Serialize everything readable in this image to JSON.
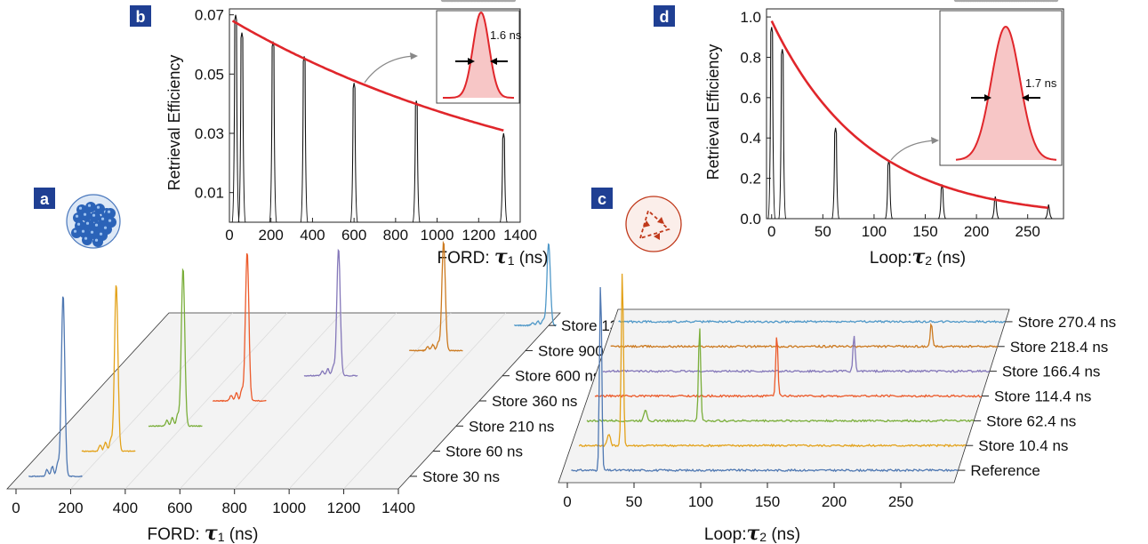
{
  "colors": {
    "fit": "#e0262b",
    "pulse": "#111111",
    "inset_dots": "#a9a9a9",
    "inset_fill": "#f7c6c6",
    "panel_label_bg": "#1f3f93",
    "floor": "#f3f3f3",
    "series": [
      "#4f78b2",
      "#e3a21a",
      "#7aae3a",
      "#ec5a2a",
      "#8477b9",
      "#cc7a20",
      "#4f98c8"
    ]
  },
  "panel_labels": {
    "a": "a",
    "b": "b",
    "c": "c",
    "d": "d"
  },
  "icons": {
    "a": "atom-cloud-icon",
    "c": "loop-cavity-icon"
  },
  "chart_data": [
    {
      "id": "b",
      "type": "line",
      "xlabel_text": "FORD: ",
      "xlabel_symbol": "τ",
      "xlabel_sub": "1",
      "xlabel_unit": " (ns)",
      "ylabel": "Retrieval Efficiency",
      "xlim": [
        0,
        1400
      ],
      "ylim": [
        0,
        0.072
      ],
      "xticks": [
        "0",
        "200",
        "400",
        "600",
        "800",
        "1000",
        "1200",
        "1400"
      ],
      "yticks": [
        "0.01",
        "0.03",
        "0.05",
        "0.07"
      ],
      "pulse_peaks": [
        {
          "x": 30,
          "y": 0.07
        },
        {
          "x": 60,
          "y": 0.064
        },
        {
          "x": 210,
          "y": 0.061
        },
        {
          "x": 360,
          "y": 0.056
        },
        {
          "x": 600,
          "y": 0.047
        },
        {
          "x": 900,
          "y": 0.041
        },
        {
          "x": 1320,
          "y": 0.03
        }
      ],
      "fit": {
        "model": "exponential",
        "y0": 0.0686,
        "decay_ns": 1660
      },
      "inset": {
        "label": "1.6 ns"
      }
    },
    {
      "id": "d",
      "type": "line",
      "xlabel_text": "Loop:",
      "xlabel_symbol": "τ",
      "xlabel_sub": "2",
      "xlabel_unit": " (ns)",
      "ylabel": "Retrieval Efficiency",
      "xlim": [
        -5,
        285
      ],
      "ylim": [
        0,
        1.04
      ],
      "xticks": [
        "0",
        "50",
        "100",
        "150",
        "200",
        "250"
      ],
      "yticks": [
        "0.0",
        "0.2",
        "0.4",
        "0.6",
        "0.8",
        "1.0"
      ],
      "pulse_peaks": [
        {
          "x": 0,
          "y": 0.95
        },
        {
          "x": 10.4,
          "y": 0.84
        },
        {
          "x": 62.4,
          "y": 0.45
        },
        {
          "x": 114.4,
          "y": 0.29
        },
        {
          "x": 166.4,
          "y": 0.17
        },
        {
          "x": 218.4,
          "y": 0.11
        },
        {
          "x": 270.4,
          "y": 0.07
        }
      ],
      "fit": {
        "model": "exponential",
        "y0": 0.98,
        "decay_ns": 93
      },
      "inset": {
        "label": "1.7 ns"
      }
    },
    {
      "id": "a",
      "type": "line",
      "xlabel_text": "FORD: ",
      "xlabel_symbol": "τ",
      "xlabel_sub": "1",
      "xlabel_unit": " (ns)",
      "xlim": [
        0,
        1400
      ],
      "xticks": [
        "0",
        "200",
        "400",
        "600",
        "800",
        "1000",
        "1200",
        "1400"
      ],
      "series": [
        {
          "name": "Store 30 ns",
          "peak_x": 130,
          "peak_height": 1.0
        },
        {
          "name": "Store 60 ns",
          "peak_x": 240,
          "peak_height": 0.92
        },
        {
          "name": "Store 210 ns",
          "peak_x": 400,
          "peak_height": 0.87
        },
        {
          "name": "Store 360 ns",
          "peak_x": 550,
          "peak_height": 0.82
        },
        {
          "name": "Store 600 ns",
          "peak_x": 800,
          "peak_height": 0.7
        },
        {
          "name": "Store 900 ns",
          "peak_x": 1100,
          "peak_height": 0.6
        },
        {
          "name": "Store 1320 ns",
          "peak_x": 1400,
          "peak_height": 0.45
        }
      ]
    },
    {
      "id": "c",
      "type": "line",
      "xlabel_text": "Loop:",
      "xlabel_symbol": "τ",
      "xlabel_sub": "2",
      "xlabel_unit": " (ns)",
      "xlim": [
        0,
        290
      ],
      "xticks": [
        "0",
        "50",
        "100",
        "150",
        "200",
        "250"
      ],
      "series": [
        {
          "name": "Reference",
          "peak_x": 22,
          "peak_height": 1.0
        },
        {
          "name": "Store 10.4 ns",
          "peak_x": 32.4,
          "peak_height": 0.92
        },
        {
          "name": "Store 62.4 ns",
          "peak_x": 84.4,
          "peak_height": 0.5
        },
        {
          "name": "Store 114.4 ns",
          "peak_x": 136.4,
          "peak_height": 0.32
        },
        {
          "name": "Store 166.4 ns",
          "peak_x": 188.4,
          "peak_height": 0.19
        },
        {
          "name": "Store 218.4 ns",
          "peak_x": 240.4,
          "peak_height": 0.12
        },
        {
          "name": "Store 270.4 ns",
          "peak_x": 292.4,
          "peak_height": 0.07
        }
      ]
    }
  ]
}
